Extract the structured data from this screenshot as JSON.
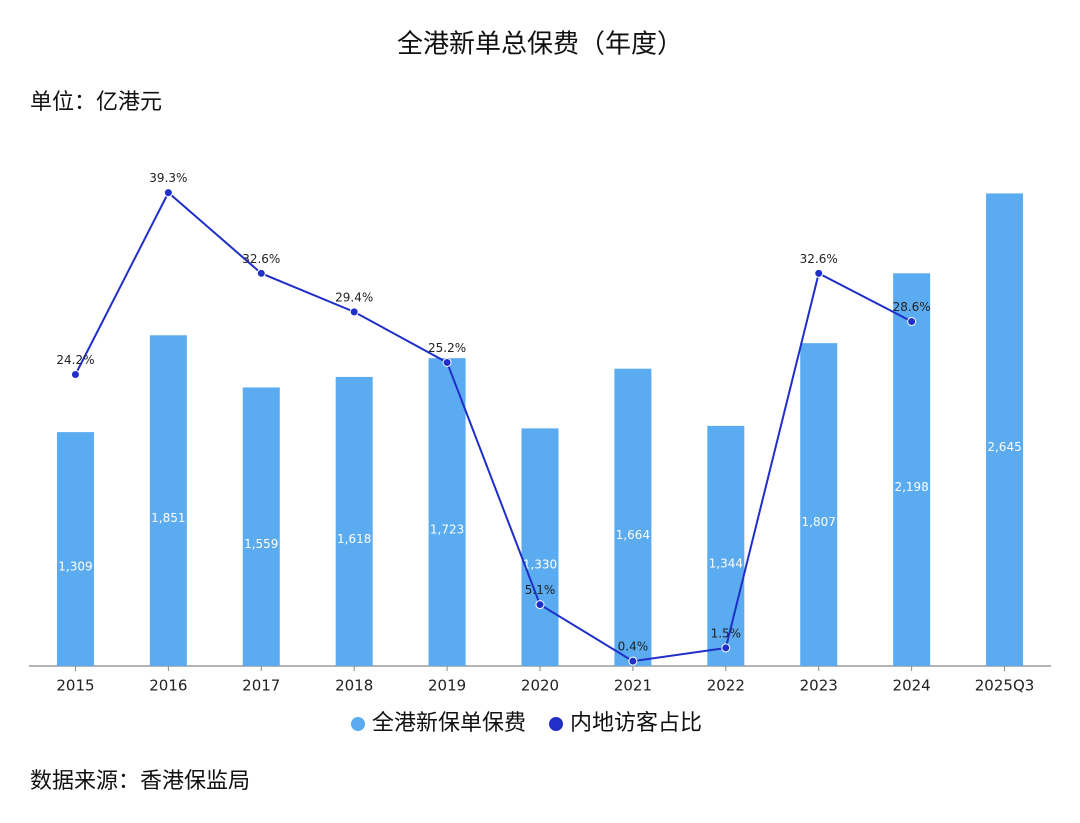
{
  "chart_data": {
    "type": "bar_line",
    "title": "全港新单总保费（年度）",
    "subtitle": "单位：亿港元",
    "source": "数据来源：香港保监局",
    "categories": [
      "2015",
      "2016",
      "2017",
      "2018",
      "2019",
      "2020",
      "2021",
      "2022",
      "2023",
      "2024",
      "2025Q3"
    ],
    "ylim": [
      0,
      3000
    ],
    "y2lim": [
      0,
      44.5
    ],
    "legend": "bottom",
    "series": [
      {
        "name": "全港新保单保费",
        "type": "bar",
        "color": "#5aabf0",
        "values": [
          1309,
          1851,
          1559,
          1618,
          1723,
          1330,
          1664,
          1344,
          1807,
          2198,
          2645
        ],
        "value_labels": [
          "1,309",
          "1,851",
          "1,559",
          "1,618",
          "1,723",
          "1,330",
          "1,664",
          "1,344",
          "1,807",
          "2,198",
          "2,645"
        ]
      },
      {
        "name": "内地访客占比",
        "type": "line",
        "axis": "y2",
        "color": "#1f2fc8",
        "values": [
          24.2,
          39.3,
          32.6,
          29.4,
          25.2,
          5.1,
          0.4,
          1.5,
          32.6,
          28.6,
          null
        ],
        "value_labels": [
          "24.2%",
          "39.3%",
          "32.6%",
          "29.4%",
          "25.2%",
          "5.1%",
          "0.4%",
          "1.5%",
          "32.6%",
          "28.6%",
          null
        ]
      }
    ]
  }
}
